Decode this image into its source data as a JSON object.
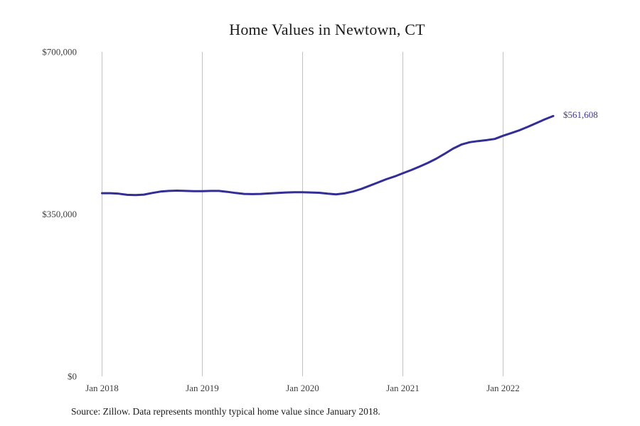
{
  "title": "Home Values in Newtown, CT",
  "source_note": "Source: Zillow. Data represents monthly typical home value since January 2018.",
  "end_label": "$561,608",
  "colors": {
    "line": "#332e96",
    "end_label_text": "#3b3699",
    "gridline": "#c3c3c3",
    "tick_text": "#3f3f3f",
    "title_text": "#1a1a1a"
  },
  "chart_data": {
    "type": "line",
    "title": "Home Values in Newtown, CT",
    "x_unit": "month",
    "x_start": "Jan 2018",
    "x_end": "Jul 2022",
    "ylim": [
      0,
      700000
    ],
    "grid": "vertical-only",
    "legend": "none",
    "y_ticks": [
      {
        "value": 0,
        "label": "$0"
      },
      {
        "value": 350000,
        "label": "$350,000"
      },
      {
        "value": 700000,
        "label": "$700,000"
      }
    ],
    "x_ticks": [
      {
        "month_index": 0,
        "label": "Jan 2018"
      },
      {
        "month_index": 12,
        "label": "Jan 2019"
      },
      {
        "month_index": 24,
        "label": "Jan 2020"
      },
      {
        "month_index": 36,
        "label": "Jan 2021"
      },
      {
        "month_index": 48,
        "label": "Jan 2022"
      }
    ],
    "final_value": 561608,
    "series": [
      {
        "name": "Typical home value",
        "values": [
          395000,
          395000,
          394000,
          391500,
          391000,
          392000,
          395500,
          398500,
          400000,
          400500,
          400000,
          399500,
          399500,
          400000,
          400000,
          398000,
          395500,
          393500,
          393000,
          393500,
          394500,
          395500,
          396500,
          397000,
          397000,
          396500,
          396000,
          394000,
          392500,
          394500,
          398500,
          404000,
          411000,
          418000,
          425000,
          431000,
          438000,
          445000,
          452500,
          460500,
          469500,
          480000,
          491000,
          500000,
          505000,
          507500,
          509500,
          512000,
          519000,
          525000,
          531000,
          538500,
          546500,
          554500,
          561608
        ]
      }
    ]
  }
}
